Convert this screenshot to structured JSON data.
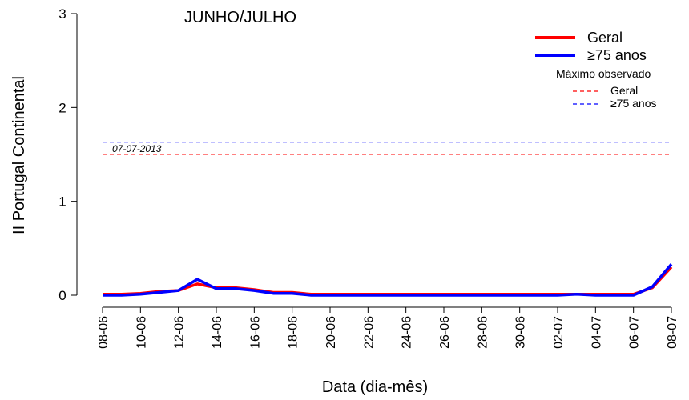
{
  "chart_data": {
    "type": "line",
    "title": "JUNHO/JULHO",
    "xlabel": "Data (dia-mês)",
    "ylabel": "II Portugal Continental",
    "ylim": [
      0,
      3
    ],
    "yticks": [
      0,
      1,
      2,
      3
    ],
    "x": [
      "08-06",
      "09-06",
      "10-06",
      "11-06",
      "12-06",
      "13-06",
      "14-06",
      "15-06",
      "16-06",
      "17-06",
      "18-06",
      "19-06",
      "20-06",
      "21-06",
      "22-06",
      "23-06",
      "24-06",
      "25-06",
      "26-06",
      "27-06",
      "28-06",
      "29-06",
      "30-06",
      "01-07",
      "02-07",
      "03-07",
      "04-07",
      "05-07",
      "06-07",
      "07-07",
      "08-07"
    ],
    "x_tick_labels": [
      "08-06",
      "10-06",
      "12-06",
      "14-06",
      "16-06",
      "18-06",
      "20-06",
      "22-06",
      "24-06",
      "26-06",
      "28-06",
      "30-06",
      "02-07",
      "04-07",
      "06-07",
      "08-07"
    ],
    "series": [
      {
        "name": "Geral",
        "color": "#ff0000",
        "values": [
          0.01,
          0.01,
          0.02,
          0.04,
          0.05,
          0.12,
          0.08,
          0.08,
          0.06,
          0.03,
          0.03,
          0.01,
          0.01,
          0.01,
          0.01,
          0.01,
          0.01,
          0.01,
          0.01,
          0.01,
          0.01,
          0.01,
          0.01,
          0.01,
          0.01,
          0.01,
          0.01,
          0.01,
          0.01,
          0.08,
          0.3
        ]
      },
      {
        "name": "≥75 anos",
        "color": "#0000ff",
        "values": [
          0.0,
          0.0,
          0.01,
          0.03,
          0.05,
          0.17,
          0.07,
          0.07,
          0.05,
          0.02,
          0.02,
          0.0,
          0.0,
          0.0,
          0.0,
          0.0,
          0.0,
          0.0,
          0.0,
          0.0,
          0.0,
          0.0,
          0.0,
          0.0,
          0.0,
          0.01,
          0.0,
          0.0,
          0.0,
          0.09,
          0.33
        ]
      }
    ],
    "reference_lines": [
      {
        "name": "Geral",
        "value": 1.5,
        "color": "#ff0000",
        "style": "dashed"
      },
      {
        "name": "≥75 anos",
        "value": 1.63,
        "color": "#0000ff",
        "style": "dashed"
      }
    ],
    "annotation": "07-07-2013",
    "legend": {
      "placement": "top-right",
      "items": [
        {
          "label": "Geral",
          "color": "#ff0000"
        },
        {
          "label": "≥75 anos",
          "color": "#0000ff"
        }
      ],
      "subtitle": "Máximo observado",
      "sub_items": [
        {
          "label": "Geral",
          "color": "#ff0000"
        },
        {
          "label": "≥75 anos",
          "color": "#0000ff"
        }
      ]
    },
    "grid": false
  }
}
